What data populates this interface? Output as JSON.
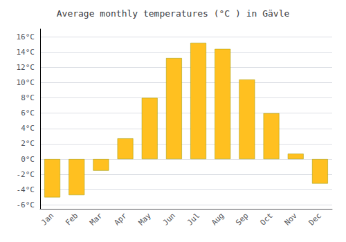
{
  "chart_data": {
    "type": "bar",
    "title": "Average monthly temperatures (°C ) in Gävle",
    "categories": [
      "Jan",
      "Feb",
      "Mar",
      "Apr",
      "May",
      "Jun",
      "Jul",
      "Aug",
      "Sep",
      "Oct",
      "Nov",
      "Dec"
    ],
    "values": [
      -5.0,
      -4.7,
      -1.5,
      2.7,
      8.0,
      13.2,
      15.2,
      14.4,
      10.4,
      6.0,
      0.7,
      -3.2
    ],
    "color": "#FFC020",
    "ylim": [
      -6.5,
      17
    ],
    "yticks": [
      {
        "value": -6,
        "label": "-6°C"
      },
      {
        "value": -4,
        "label": "-4°C"
      },
      {
        "value": -2,
        "label": "-2°C"
      },
      {
        "value": 0,
        "label": "0°C"
      },
      {
        "value": 2,
        "label": "2°C"
      },
      {
        "value": 4,
        "label": "4°C"
      },
      {
        "value": 6,
        "label": "6°C"
      },
      {
        "value": 8,
        "label": "8°C"
      },
      {
        "value": 10,
        "label": "10°C"
      },
      {
        "value": 12,
        "label": "12°C"
      },
      {
        "value": 14,
        "label": "14°C"
      },
      {
        "value": 16,
        "label": "16°C"
      }
    ],
    "grid": true
  }
}
